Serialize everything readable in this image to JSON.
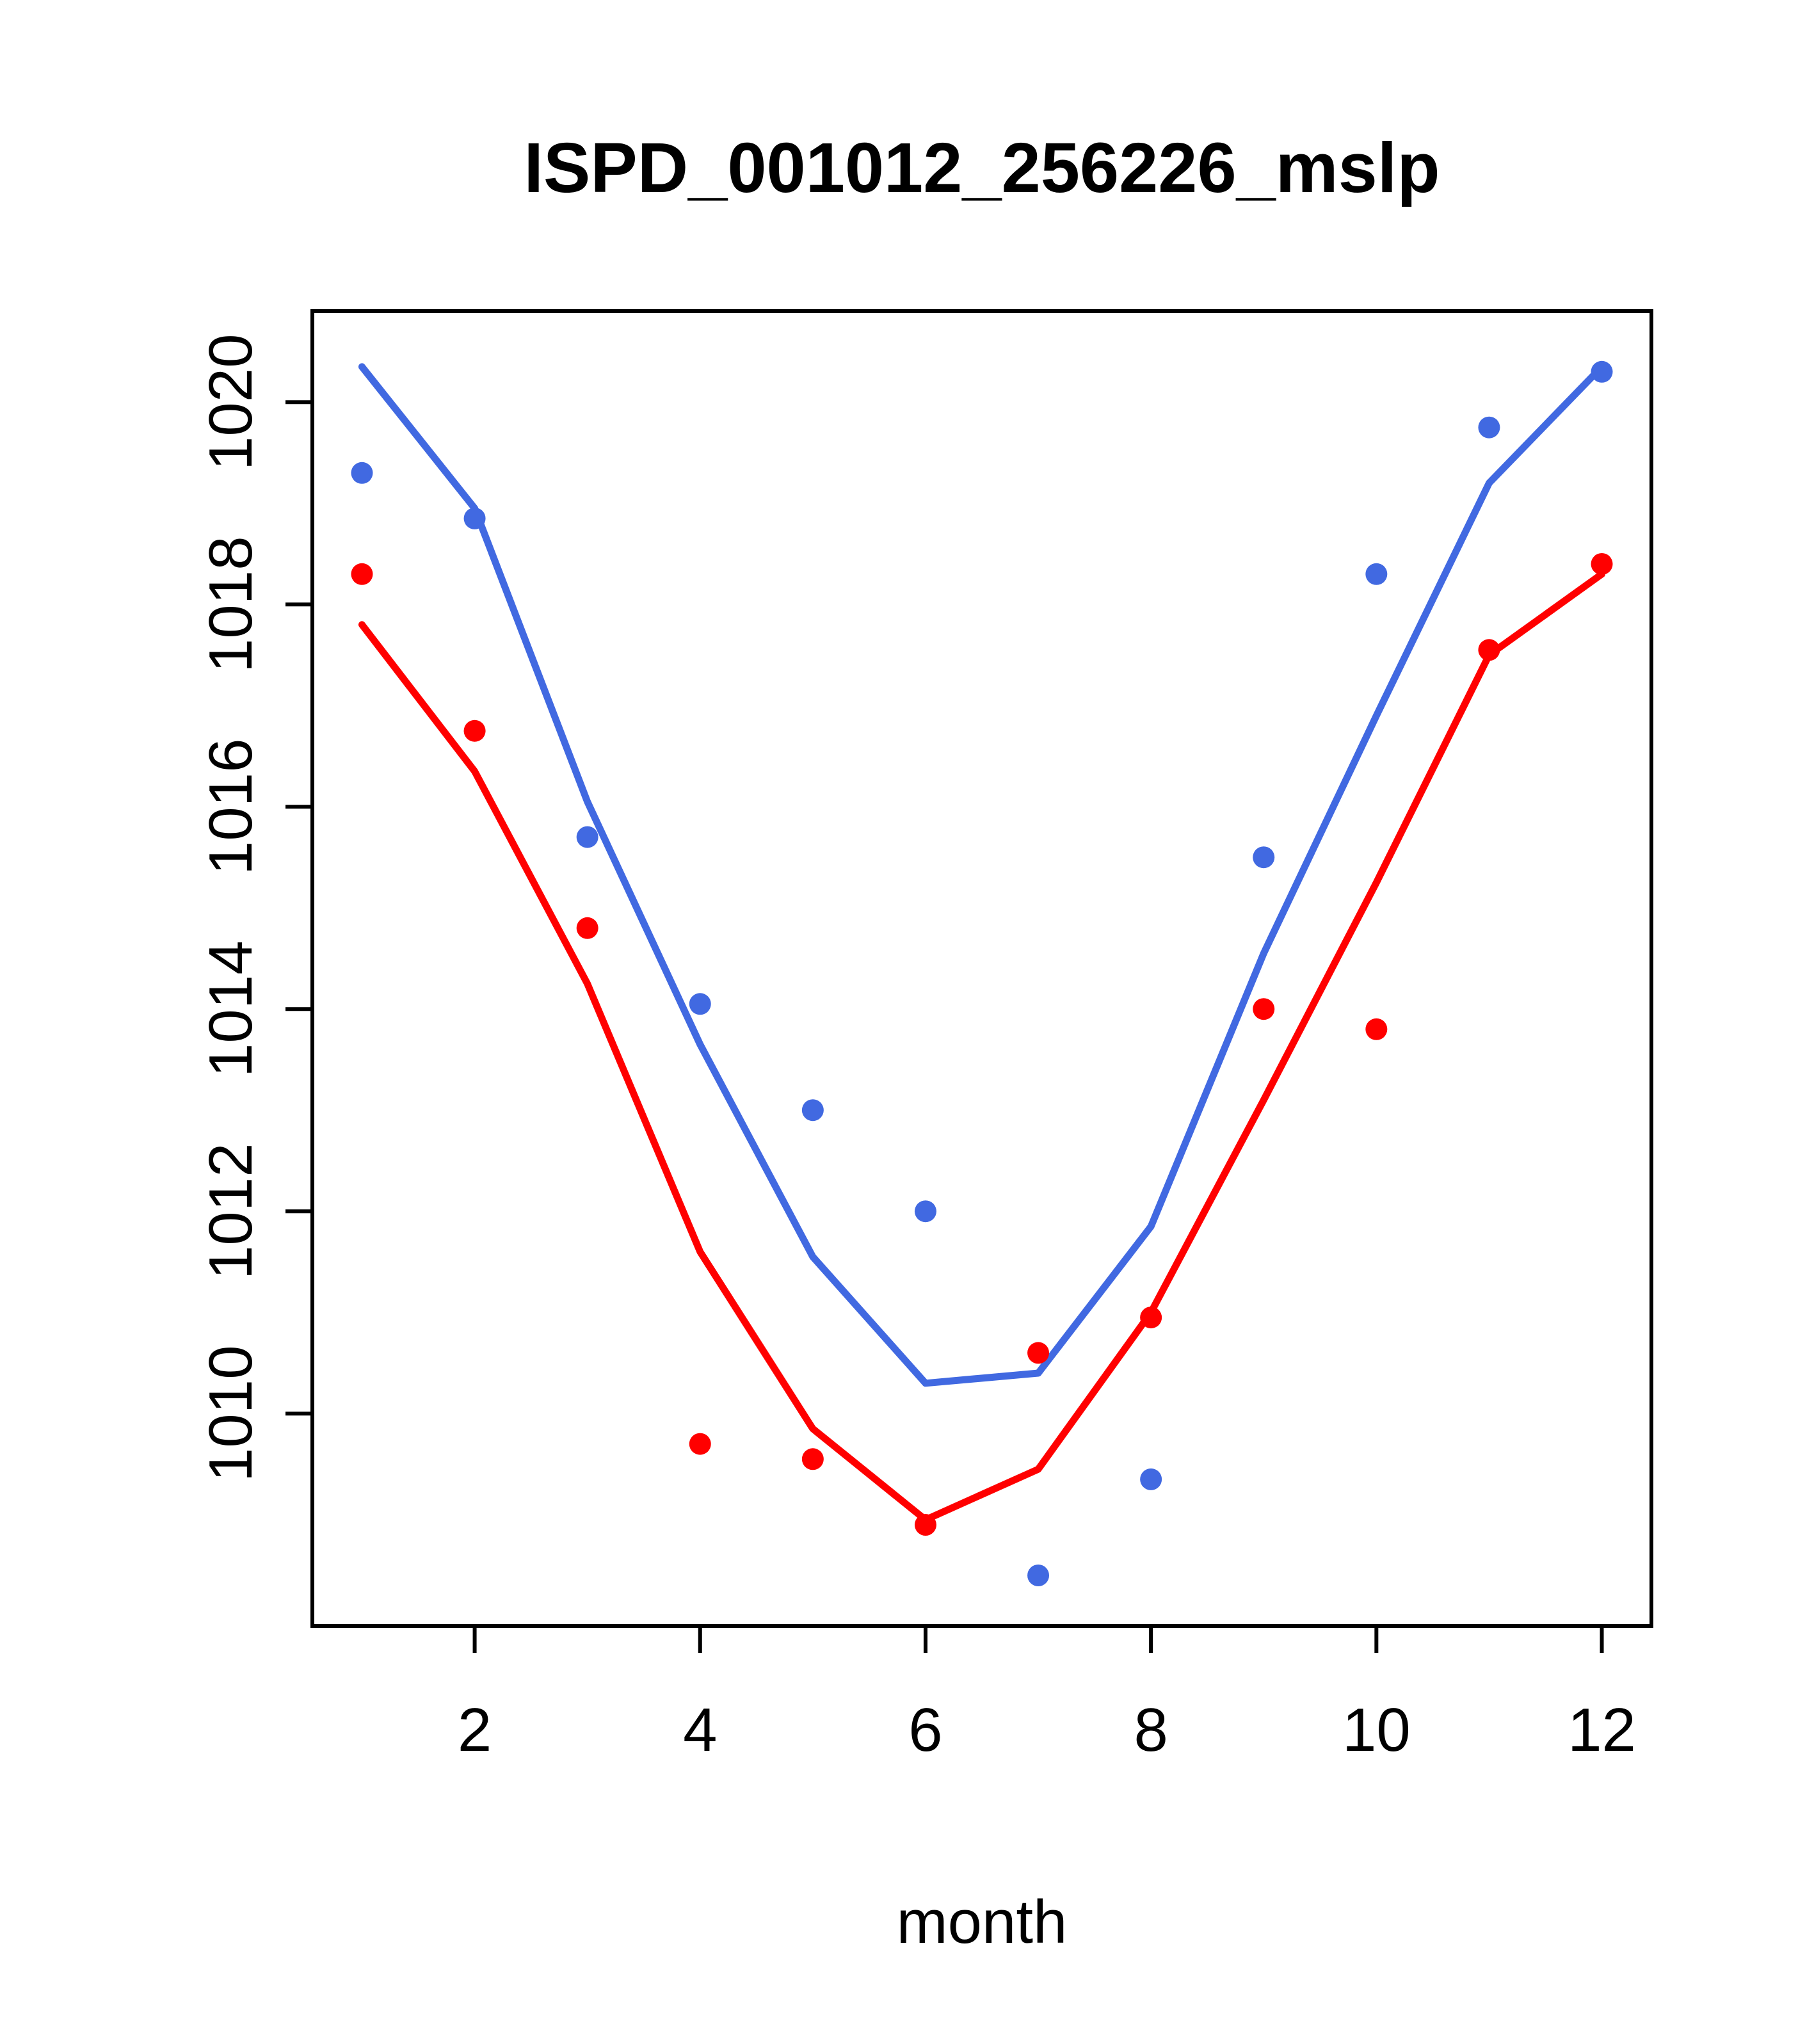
{
  "chart_data": {
    "type": "line",
    "title": "ISPD_001012_256226_mslp",
    "xlabel": "month",
    "ylabel": "",
    "x": [
      1,
      2,
      3,
      4,
      5,
      6,
      7,
      8,
      9,
      10,
      11,
      12
    ],
    "xlim": [
      0.56,
      12.44
    ],
    "ylim": [
      1007.9,
      1020.9
    ],
    "xticks": [
      2,
      4,
      6,
      8,
      10,
      12
    ],
    "yticks": [
      1010,
      1012,
      1014,
      1016,
      1018,
      1020
    ],
    "grid": false,
    "legend": "none",
    "colors": {
      "blue": "#4169E1",
      "red": "#FF0000"
    },
    "series": [
      {
        "name": "blue-line",
        "style": "line",
        "color": "#4169E1",
        "values": [
          1020.35,
          1018.95,
          1016.05,
          1013.65,
          1011.55,
          1010.3,
          1010.4,
          1011.85,
          1014.55,
          1016.9,
          1019.2,
          1020.35
        ]
      },
      {
        "name": "red-line",
        "style": "line",
        "color": "#FF0000",
        "values": [
          1017.8,
          1016.35,
          1014.25,
          1011.6,
          1009.85,
          1008.95,
          1009.45,
          1011.0,
          1013.1,
          1015.25,
          1017.5,
          1018.3
        ]
      },
      {
        "name": "blue-points",
        "style": "scatter",
        "color": "#4169E1",
        "values": [
          1019.3,
          1018.85,
          1015.7,
          1014.05,
          1013.0,
          1012.0,
          1008.4,
          1009.35,
          1015.5,
          1018.3,
          1019.75,
          1020.3
        ]
      },
      {
        "name": "red-points",
        "style": "scatter",
        "color": "#FF0000",
        "values": [
          1018.3,
          1016.75,
          1014.8,
          1009.7,
          1009.55,
          1008.9,
          1010.6,
          1010.95,
          1014.0,
          1013.8,
          1017.55,
          1018.4
        ]
      }
    ]
  }
}
